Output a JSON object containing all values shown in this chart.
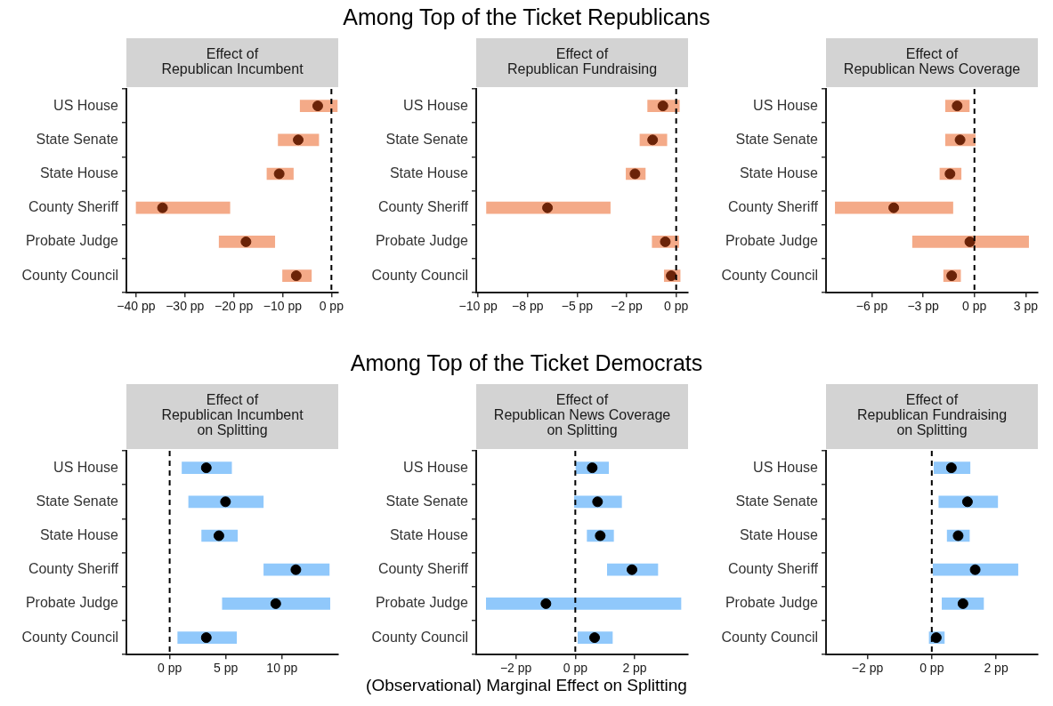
{
  "chart_data": [
    {
      "type": "bar",
      "orientation": "horizontal",
      "title": "Effect of\nRepublican Incumbent",
      "annotations": [
        "Among Top of the Ticket Republicans"
      ],
      "categories": [
        "US House",
        "State Senate",
        "State House",
        "County Sheriff",
        "Probate Judge",
        "County Council"
      ],
      "xlim": [
        -42,
        1.4
      ],
      "xticks": [
        {
          "value": -40,
          "label": "−40 pp"
        },
        {
          "value": -30,
          "label": "−30 pp"
        },
        {
          "value": -20,
          "label": "−20 pp"
        },
        {
          "value": -10,
          "label": "−10 pp"
        },
        {
          "value": 0,
          "label": "0 pp"
        }
      ],
      "ref_lines": [
        {
          "axis": "x",
          "value": 0,
          "line_style": "dashed",
          "color": "#000000"
        }
      ],
      "series": [
        {
          "type": "bar",
          "color": "#f4aa88",
          "base": [
            -6.4,
            -10.9,
            -13.2,
            -40,
            -23,
            -10
          ],
          "values": [
            7.6,
            8.3,
            5.4,
            19.2,
            11.4,
            5.9
          ]
        },
        {
          "type": "scatter",
          "color": "#6b2308",
          "x": [
            "US House",
            "State Senate",
            "State House",
            "County Sheriff",
            "Probate Judge",
            "County Council"
          ],
          "values": [
            -2.8,
            -6.8,
            -10.7,
            -34.6,
            -17.5,
            -7.2
          ]
        }
      ]
    },
    {
      "type": "bar",
      "orientation": "horizontal",
      "title": "Effect of\nRepublican Fundraising",
      "categories": [
        "US House",
        "State Senate",
        "State House",
        "County Sheriff",
        "Probate Judge",
        "County Council"
      ],
      "xlim": [
        -10.1,
        0.6
      ],
      "xticks": [
        {
          "value": -10,
          "label": "−10 pp"
        },
        {
          "value": -7.5,
          "label": "−8 pp"
        },
        {
          "value": -5,
          "label": "−5 pp"
        },
        {
          "value": -2.5,
          "label": "−2 pp"
        },
        {
          "value": 0,
          "label": "0 pp"
        }
      ],
      "ref_lines": [
        {
          "axis": "x",
          "value": 0,
          "line_style": "dashed",
          "color": "#000000"
        }
      ],
      "series": [
        {
          "type": "bar",
          "color": "#f4aa88",
          "base": [
            -1.44,
            -1.83,
            -2.53,
            -9.58,
            -1.21,
            -0.6
          ],
          "values": [
            1.6,
            1.36,
            0.97,
            6.25,
            1.34,
            0.8
          ]
        },
        {
          "type": "scatter",
          "color": "#6b2308",
          "x": [
            "US House",
            "State Senate",
            "State House",
            "County Sheriff",
            "Probate Judge",
            "County Council"
          ],
          "values": [
            -0.67,
            -1.19,
            -2.08,
            -6.5,
            -0.55,
            -0.25
          ]
        }
      ]
    },
    {
      "type": "bar",
      "orientation": "horizontal",
      "title": "Effect of\nRepublican News Coverage",
      "categories": [
        "US House",
        "State Senate",
        "State House",
        "County Sheriff",
        "Probate Judge",
        "County Council"
      ],
      "xlim": [
        -8.68,
        3.71
      ],
      "xticks": [
        {
          "value": -6,
          "label": "−6 pp"
        },
        {
          "value": -3,
          "label": "−3 pp"
        },
        {
          "value": 0,
          "label": "0 pp"
        },
        {
          "value": 3,
          "label": "3 pp"
        }
      ],
      "ref_lines": [
        {
          "axis": "x",
          "value": 0,
          "line_style": "dashed",
          "color": "#000000"
        }
      ],
      "series": [
        {
          "type": "bar",
          "color": "#f4aa88",
          "base": [
            -1.69,
            -1.69,
            -2.02,
            -8.14,
            -3.62,
            -1.8
          ],
          "values": [
            1.39,
            1.74,
            1.24,
            6.88,
            6.79,
            0.99
          ]
        },
        {
          "type": "scatter",
          "color": "#6b2308",
          "x": [
            "US House",
            "State Senate",
            "State House",
            "County Sheriff",
            "Probate Judge",
            "County Council"
          ],
          "values": [
            -1.01,
            -0.84,
            -1.43,
            -4.72,
            -0.27,
            -1.33
          ]
        }
      ]
    },
    {
      "type": "bar",
      "orientation": "horizontal",
      "title": "Effect of\nRepublican Incumbent\non Splitting",
      "annotations": [
        "Among Top of the Ticket Democrats"
      ],
      "categories": [
        "US House",
        "State Senate",
        "State House",
        "County Sheriff",
        "Probate Judge",
        "County Council"
      ],
      "xlim": [
        -3.85,
        15
      ],
      "xticks": [
        {
          "value": 0,
          "label": "0 pp"
        },
        {
          "value": 5,
          "label": "5 pp"
        },
        {
          "value": 10,
          "label": "10 pp"
        }
      ],
      "ref_lines": [
        {
          "axis": "x",
          "value": 0,
          "line_style": "dashed",
          "color": "#000000"
        }
      ],
      "series": [
        {
          "type": "bar",
          "color": "#90c8fb",
          "base": [
            1.1,
            1.69,
            2.85,
            8.38,
            4.69,
            0.72
          ],
          "values": [
            4.41,
            6.64,
            3.18,
            5.82,
            9.57,
            5.23
          ]
        },
        {
          "type": "scatter",
          "color": "#000000",
          "x": [
            "US House",
            "State Senate",
            "State House",
            "County Sheriff",
            "Probate Judge",
            "County Council"
          ],
          "values": [
            3.26,
            4.97,
            4.38,
            11.23,
            9.44,
            3.26
          ]
        }
      ]
    },
    {
      "type": "bar",
      "orientation": "horizontal",
      "title": "Effect of\nRepublican News Coverage\non Splitting",
      "xlabel": "(Observational) Marginal Effect on Splitting",
      "categories": [
        "US House",
        "State Senate",
        "State House",
        "County Sheriff",
        "Probate Judge",
        "County Council"
      ],
      "xlim": [
        -3.34,
        3.8
      ],
      "xticks": [
        {
          "value": -2,
          "label": "−2 pp"
        },
        {
          "value": 0,
          "label": "0 pp"
        },
        {
          "value": 2,
          "label": "2 pp"
        }
      ],
      "ref_lines": [
        {
          "axis": "x",
          "value": 0,
          "line_style": "dashed",
          "color": "#000000"
        }
      ],
      "series": [
        {
          "type": "bar",
          "color": "#90c8fb",
          "base": [
            0.02,
            -0.03,
            0.4,
            1.08,
            -3.0,
            0.09
          ],
          "values": [
            1.1,
            1.59,
            0.89,
            1.7,
            6.56,
            1.16
          ]
        },
        {
          "type": "scatter",
          "color": "#000000",
          "x": [
            "US House",
            "State Senate",
            "State House",
            "County Sheriff",
            "Probate Judge",
            "County Council"
          ],
          "values": [
            0.57,
            0.75,
            0.84,
            1.91,
            -0.99,
            0.65
          ]
        }
      ]
    },
    {
      "type": "bar",
      "orientation": "horizontal",
      "title": "Effect of\nRepublican Fundraising\non Splitting",
      "categories": [
        "US House",
        "State Senate",
        "State House",
        "County Sheriff",
        "Probate Judge",
        "County Council"
      ],
      "xlim": [
        -3.29,
        3.3
      ],
      "xticks": [
        {
          "value": -2,
          "label": "−2 pp"
        },
        {
          "value": 0,
          "label": "0 pp"
        },
        {
          "value": 2,
          "label": "2 pp"
        }
      ],
      "ref_lines": [
        {
          "axis": "x",
          "value": 0,
          "line_style": "dashed",
          "color": "#000000"
        }
      ],
      "series": [
        {
          "type": "bar",
          "color": "#90c8fb",
          "base": [
            0.07,
            0.22,
            0.48,
            0.04,
            0.32,
            -0.08
          ],
          "values": [
            1.12,
            1.83,
            0.69,
            2.64,
            1.29,
            0.47
          ]
        },
        {
          "type": "scatter",
          "color": "#000000",
          "x": [
            "US House",
            "State Senate",
            "State House",
            "County Sheriff",
            "Probate Judge",
            "County Council"
          ],
          "values": [
            0.61,
            1.11,
            0.82,
            1.35,
            0.97,
            0.14
          ]
        }
      ]
    }
  ]
}
